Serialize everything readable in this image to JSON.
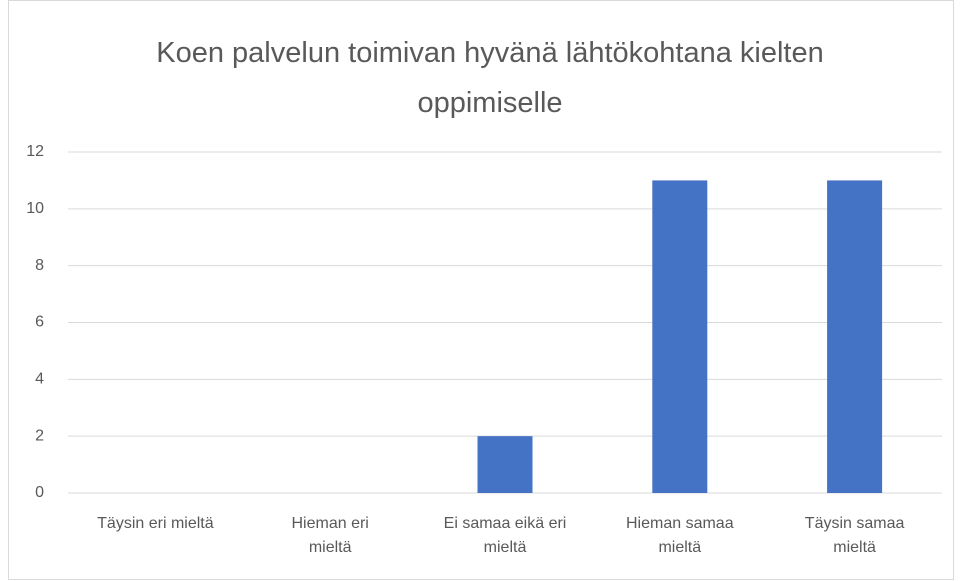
{
  "chart_data": {
    "type": "bar",
    "title": "Koen palvelun toimivan hyvänä lähtökohtana kielten oppimiselle",
    "categories": [
      "Täysin eri mieltä",
      "Hieman eri mieltä",
      "Ei samaa eikä eri mieltä",
      "Hieman samaa mieltä",
      "Täysin samaa mieltä"
    ],
    "values": [
      0,
      0,
      2,
      11,
      11
    ],
    "color": "#4472c4",
    "ylim": [
      0,
      12
    ],
    "yticks": [
      0,
      2,
      4,
      6,
      8,
      10,
      12
    ],
    "grid": true
  }
}
